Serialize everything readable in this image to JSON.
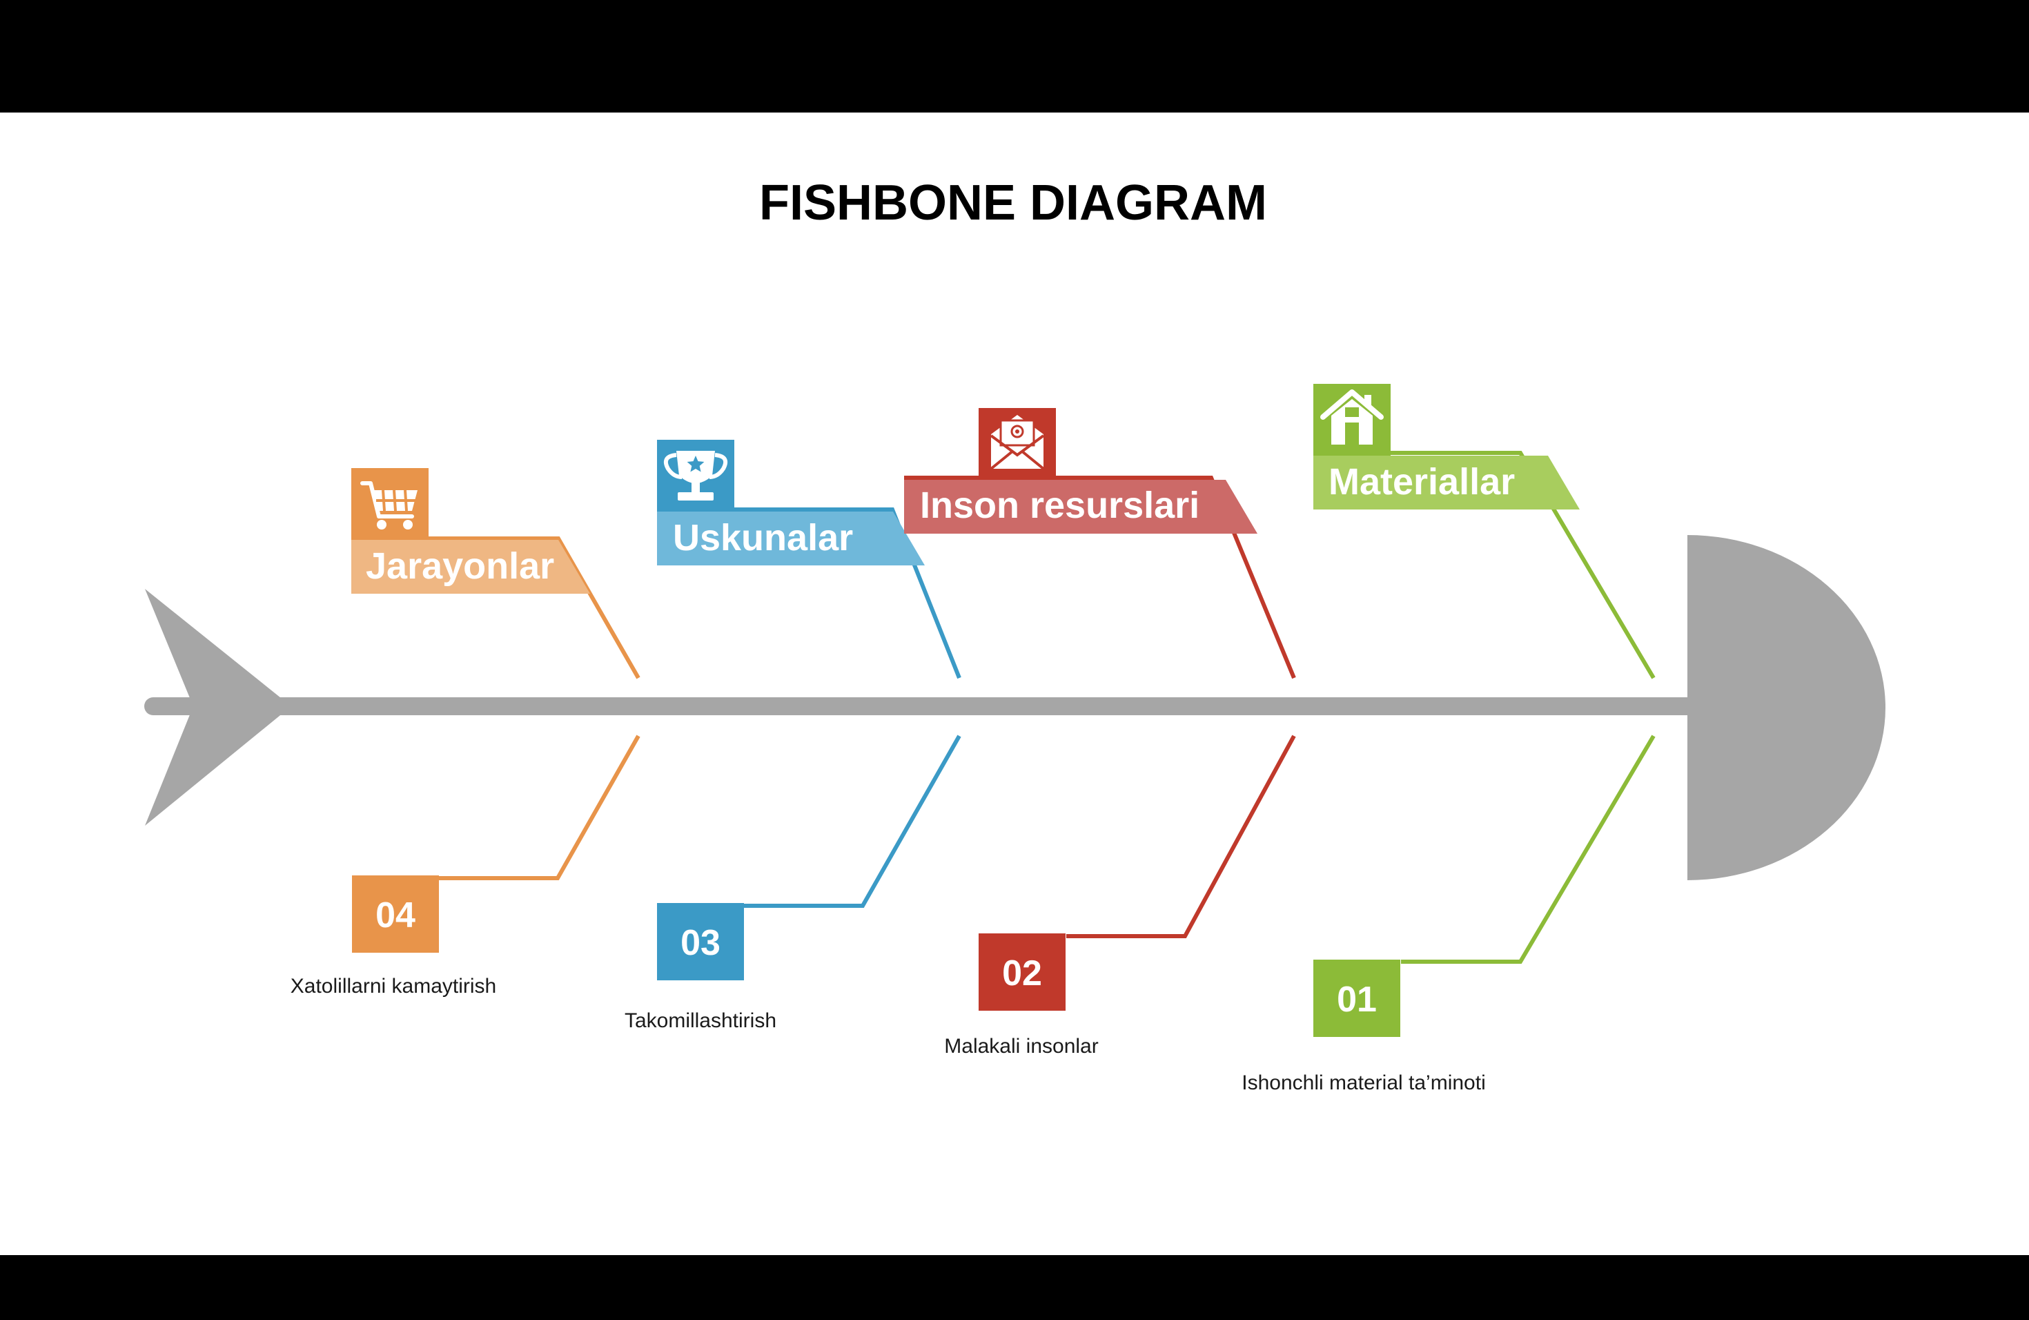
{
  "title": "FISHBONE DIAGRAM",
  "colors": {
    "spine": "#a6a6a6",
    "background": "#ffffff",
    "frame": "#000000",
    "title": "#000000",
    "caption": "#1a1a1a"
  },
  "categories": [
    {
      "number": "04",
      "label": "Jarayonlar",
      "caption": "Xatolillarni kamaytirish",
      "icon": "shopping-cart-icon",
      "color": "#e8944a",
      "light": "#efb783"
    },
    {
      "number": "03",
      "label": "Uskunalar",
      "caption": "Takomillashtirish",
      "icon": "trophy-icon",
      "color": "#3b9ac6",
      "light": "#6fb8da"
    },
    {
      "number": "02",
      "label": "Inson resurslari",
      "caption": "Malakali insonlar",
      "icon": "mail-icon",
      "color": "#c0392b",
      "light": "#cc6a68"
    },
    {
      "number": "01",
      "label": "Materiallar",
      "caption": "Ishonchli material ta’minoti",
      "icon": "house-icon",
      "color": "#8cbb38",
      "light": "#a8cd5e"
    }
  ]
}
